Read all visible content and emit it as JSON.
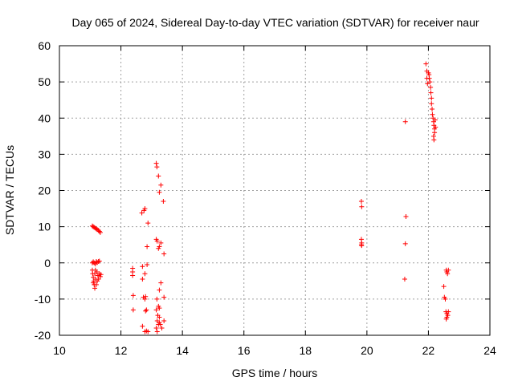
{
  "chart_data": {
    "type": "scatter",
    "title": "Day 065 of 2024, Sidereal Day-to-day VTEC variation (SDTVAR) for receiver naur",
    "xlabel": "GPS time / hours",
    "ylabel": "SDTVAR / TECUs",
    "xlim": [
      10,
      24
    ],
    "ylim": [
      -20,
      60
    ],
    "xticks": [
      10,
      12,
      14,
      16,
      18,
      20,
      22,
      24
    ],
    "yticks": [
      -20,
      -10,
      0,
      10,
      20,
      30,
      40,
      50,
      60
    ],
    "x_tick_labels": [
      "10",
      "12",
      "14",
      "16",
      "18",
      "20",
      "22",
      "24"
    ],
    "y_tick_labels": [
      "-20",
      "-10",
      "0",
      "10",
      "20",
      "30",
      "40",
      "50",
      "60"
    ],
    "grid": true,
    "marker": "+",
    "color": "#ff0000",
    "series": [
      {
        "name": "SDTVAR",
        "points": [
          [
            11.07,
            10.2
          ],
          [
            11.1,
            10.0
          ],
          [
            11.13,
            9.8
          ],
          [
            11.17,
            9.6
          ],
          [
            11.2,
            9.4
          ],
          [
            11.23,
            9.2
          ],
          [
            11.27,
            9.0
          ],
          [
            11.3,
            8.7
          ],
          [
            11.33,
            8.4
          ],
          [
            11.07,
            0.0
          ],
          [
            11.1,
            0.3
          ],
          [
            11.13,
            0.0
          ],
          [
            11.17,
            -0.3
          ],
          [
            11.2,
            0.4
          ],
          [
            11.23,
            0.1
          ],
          [
            11.27,
            0.4
          ],
          [
            11.3,
            0.5
          ],
          [
            11.07,
            -2.0
          ],
          [
            11.08,
            -3.0
          ],
          [
            11.1,
            -4.0
          ],
          [
            11.12,
            -5.0
          ],
          [
            11.13,
            -6.0
          ],
          [
            11.15,
            -7.0
          ],
          [
            11.1,
            -5.5
          ],
          [
            11.15,
            -3.0
          ],
          [
            11.18,
            -4.5
          ],
          [
            11.2,
            -6.0
          ],
          [
            11.22,
            -2.5
          ],
          [
            11.25,
            -3.5
          ],
          [
            11.27,
            -4.5
          ],
          [
            11.3,
            -3.0
          ],
          [
            11.33,
            -3.8
          ],
          [
            11.35,
            -3.2
          ],
          [
            11.17,
            -2.0
          ],
          [
            11.23,
            -5.0
          ],
          [
            12.38,
            -1.5
          ],
          [
            12.38,
            -2.5
          ],
          [
            12.38,
            -3.5
          ],
          [
            12.4,
            -9.0
          ],
          [
            12.4,
            -13.0
          ],
          [
            12.68,
            13.8
          ],
          [
            12.78,
            15.0
          ],
          [
            12.75,
            14.5
          ],
          [
            12.88,
            11.0
          ],
          [
            12.85,
            4.5
          ],
          [
            12.7,
            -1.0
          ],
          [
            12.85,
            -0.5
          ],
          [
            12.78,
            -3.0
          ],
          [
            12.7,
            -4.5
          ],
          [
            12.73,
            -9.5
          ],
          [
            12.78,
            -10.0
          ],
          [
            12.8,
            -9.3
          ],
          [
            12.83,
            -13.0
          ],
          [
            12.8,
            -13.3
          ],
          [
            12.7,
            -17.5
          ],
          [
            12.78,
            -19.0
          ],
          [
            12.83,
            -18.8
          ],
          [
            12.88,
            -19.0
          ],
          [
            13.15,
            27.5
          ],
          [
            13.17,
            26.5
          ],
          [
            13.22,
            24.0
          ],
          [
            13.3,
            21.5
          ],
          [
            13.25,
            19.5
          ],
          [
            13.38,
            17.0
          ],
          [
            13.15,
            6.5
          ],
          [
            13.18,
            6.0
          ],
          [
            13.25,
            4.5
          ],
          [
            13.3,
            5.5
          ],
          [
            13.4,
            2.5
          ],
          [
            13.22,
            4.0
          ],
          [
            13.3,
            -5.5
          ],
          [
            13.25,
            -7.5
          ],
          [
            13.4,
            -9.5
          ],
          [
            13.17,
            -10.0
          ],
          [
            13.22,
            -12.0
          ],
          [
            13.25,
            -12.5
          ],
          [
            13.15,
            -13.0
          ],
          [
            13.2,
            -14.5
          ],
          [
            13.25,
            -15.0
          ],
          [
            13.18,
            -16.0
          ],
          [
            13.22,
            -17.0
          ],
          [
            13.28,
            -17.0
          ],
          [
            13.33,
            -18.0
          ],
          [
            13.4,
            -16.0
          ],
          [
            13.15,
            -18.0
          ],
          [
            13.18,
            -19.0
          ],
          [
            13.25,
            -16.5
          ],
          [
            19.82,
            17.0
          ],
          [
            19.83,
            15.5
          ],
          [
            19.82,
            6.5
          ],
          [
            19.83,
            5.5
          ],
          [
            19.82,
            5.0
          ],
          [
            19.83,
            4.8
          ],
          [
            21.25,
            39.0
          ],
          [
            21.27,
            12.8
          ],
          [
            21.25,
            5.3
          ],
          [
            21.23,
            -4.5
          ],
          [
            21.92,
            55.0
          ],
          [
            21.95,
            53.0
          ],
          [
            21.95,
            51.0
          ],
          [
            21.97,
            49.5
          ],
          [
            22.0,
            52.5
          ],
          [
            22.02,
            52.0
          ],
          [
            22.03,
            51.0
          ],
          [
            22.05,
            50.0
          ],
          [
            22.07,
            48.5
          ],
          [
            22.08,
            47.0
          ],
          [
            22.1,
            45.5
          ],
          [
            22.1,
            44.0
          ],
          [
            22.12,
            42.5
          ],
          [
            22.13,
            41.0
          ],
          [
            22.15,
            40.0
          ],
          [
            22.17,
            39.0
          ],
          [
            22.18,
            38.0
          ],
          [
            22.2,
            37.0
          ],
          [
            22.2,
            36.0
          ],
          [
            22.17,
            35.0
          ],
          [
            22.18,
            34.0
          ],
          [
            22.22,
            39.5
          ],
          [
            22.23,
            37.5
          ],
          [
            22.5,
            -6.5
          ],
          [
            22.52,
            -9.5
          ],
          [
            22.55,
            -10.0
          ],
          [
            22.58,
            -2.0
          ],
          [
            22.6,
            -2.5
          ],
          [
            22.62,
            -3.0
          ],
          [
            22.65,
            -2.0
          ],
          [
            22.57,
            -13.5
          ],
          [
            22.6,
            -14.0
          ],
          [
            22.63,
            -14.5
          ],
          [
            22.58,
            -15.5
          ],
          [
            22.6,
            -15.0
          ],
          [
            22.65,
            -13.5
          ]
        ]
      }
    ]
  }
}
